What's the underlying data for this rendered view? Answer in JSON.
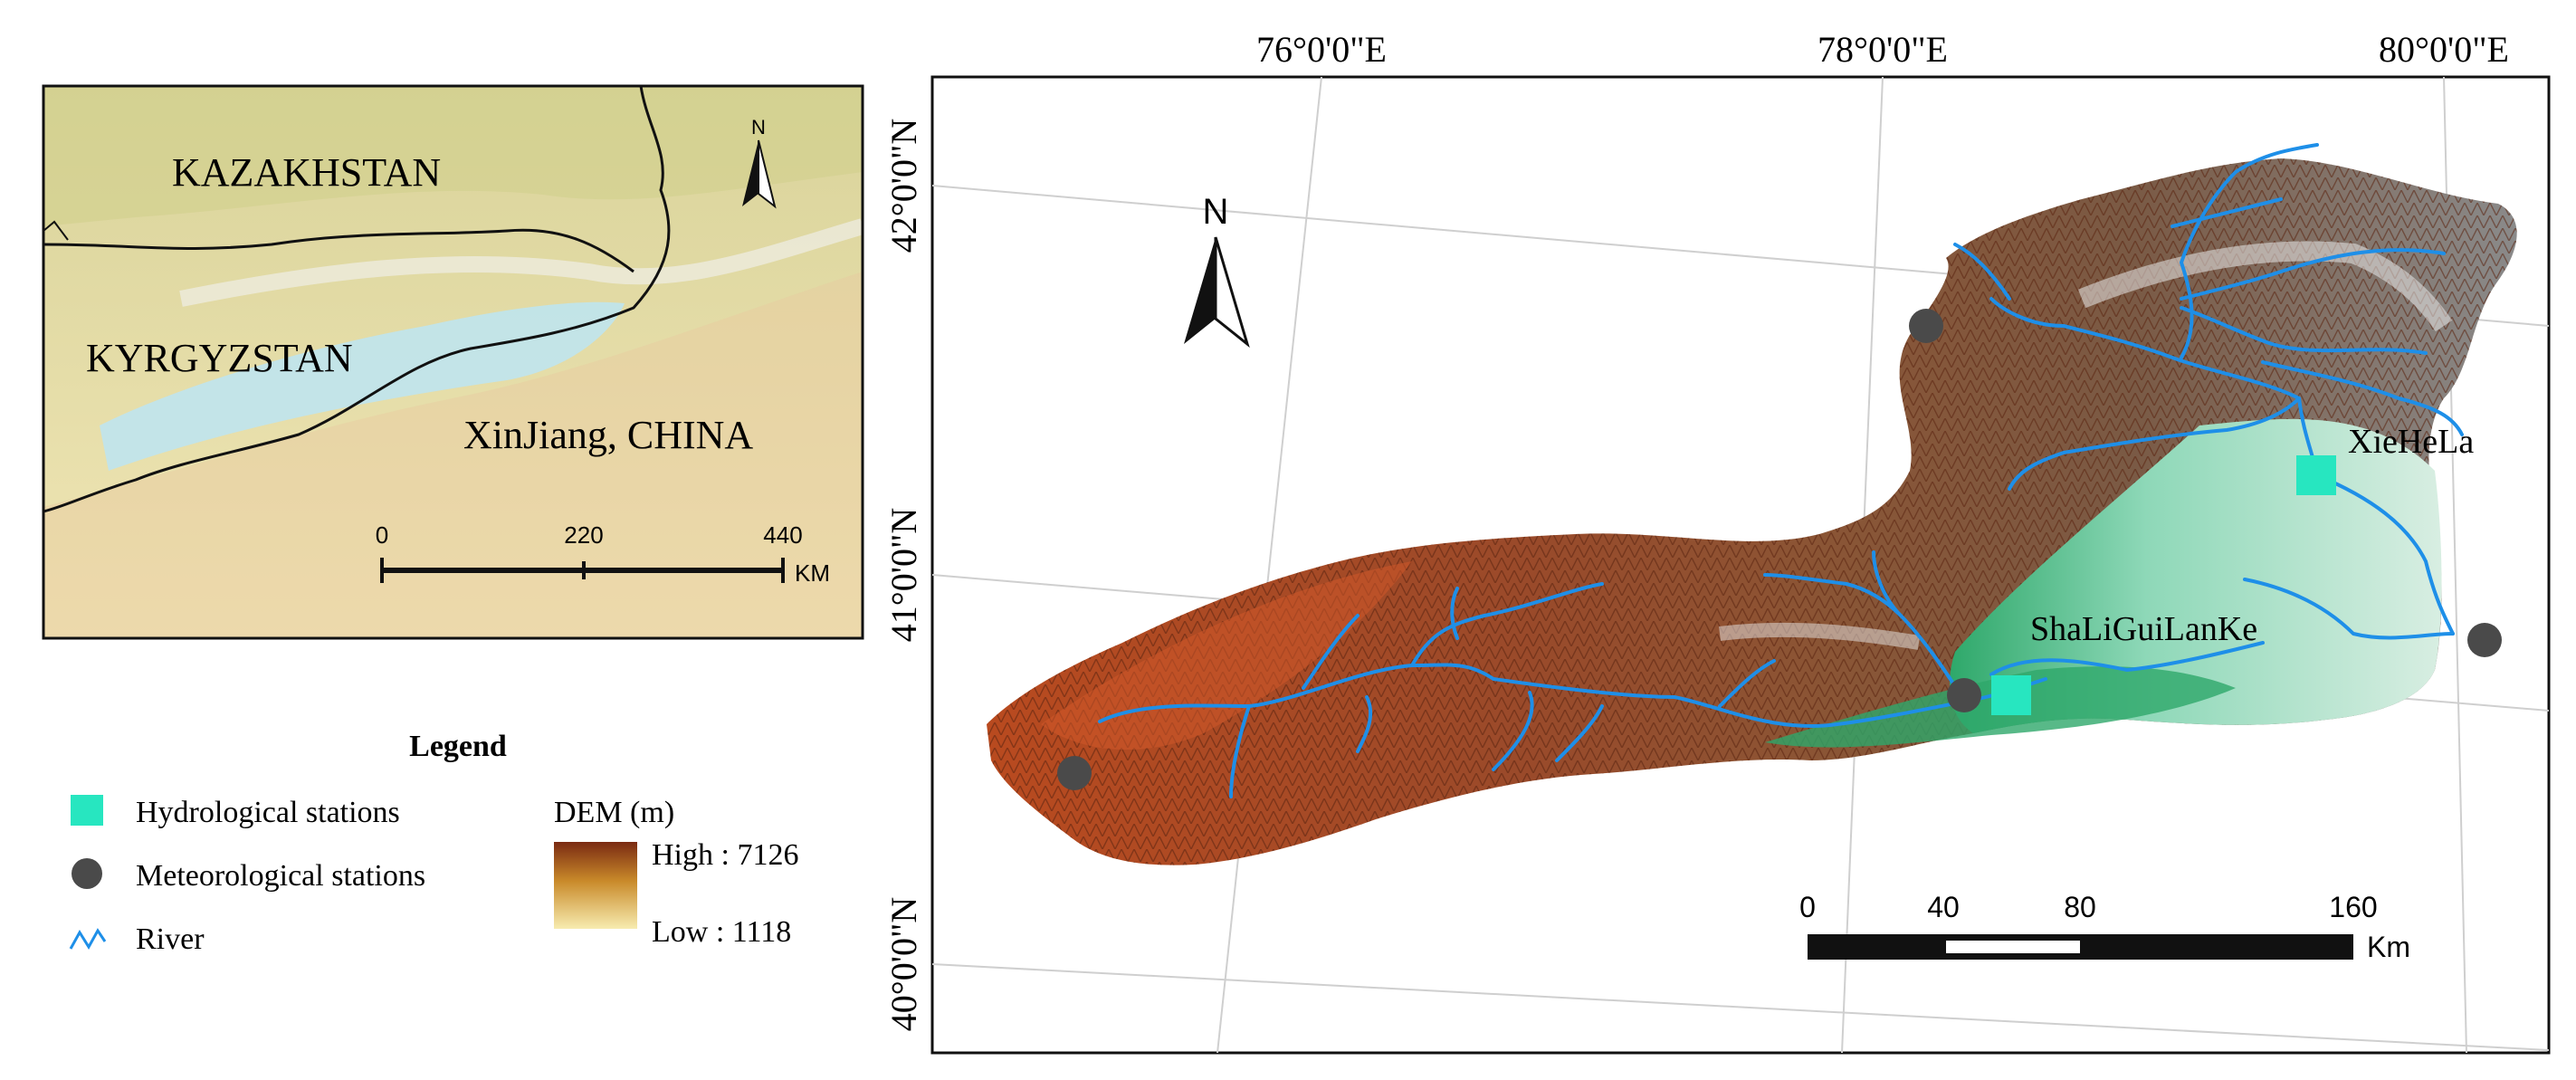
{
  "inset": {
    "labels": {
      "country1": "KAZAKHSTAN",
      "country2": "KYRGYZSTAN",
      "region": "XinJiang, CHINA"
    },
    "north": "N",
    "scale": {
      "ticks": [
        "0",
        "220",
        "440"
      ],
      "unit": "KM"
    }
  },
  "main": {
    "graticule": {
      "lon": [
        "76°0'0\"E",
        "78°0'0\"E",
        "80°0'0\"E"
      ],
      "lat": [
        "42°0'0\"N",
        "41°0'0\"N",
        "40°0'0\"N"
      ]
    },
    "north": "N",
    "stations": {
      "hydro": [
        {
          "name": "XieHeLa"
        },
        {
          "name": "ShaLiGuiLanKe"
        }
      ],
      "meteo_count": 4
    },
    "scale": {
      "ticks": [
        "0",
        "40",
        "80",
        "160"
      ],
      "unit": "Km"
    }
  },
  "legend": {
    "title": "Legend",
    "items": [
      {
        "label": "Hydrological stations",
        "color": "#27e6c0"
      },
      {
        "label": "Meteorological stations",
        "color": "#4a4a4a"
      },
      {
        "label": "River",
        "color": "#1e8fe8"
      }
    ],
    "dem": {
      "title": "DEM (m)",
      "high": "High : 7126",
      "low": "Low :  1118"
    }
  },
  "colors": {
    "river": "#1e8fe8",
    "dem_high": "#7a2a12",
    "dem_mid": "#c98a2a",
    "dem_low": "#f7ecb0",
    "basin_lowland": "#8ed8b8",
    "inset_basin": "#bfe4ee",
    "inset_land": "#e9e0a8"
  }
}
